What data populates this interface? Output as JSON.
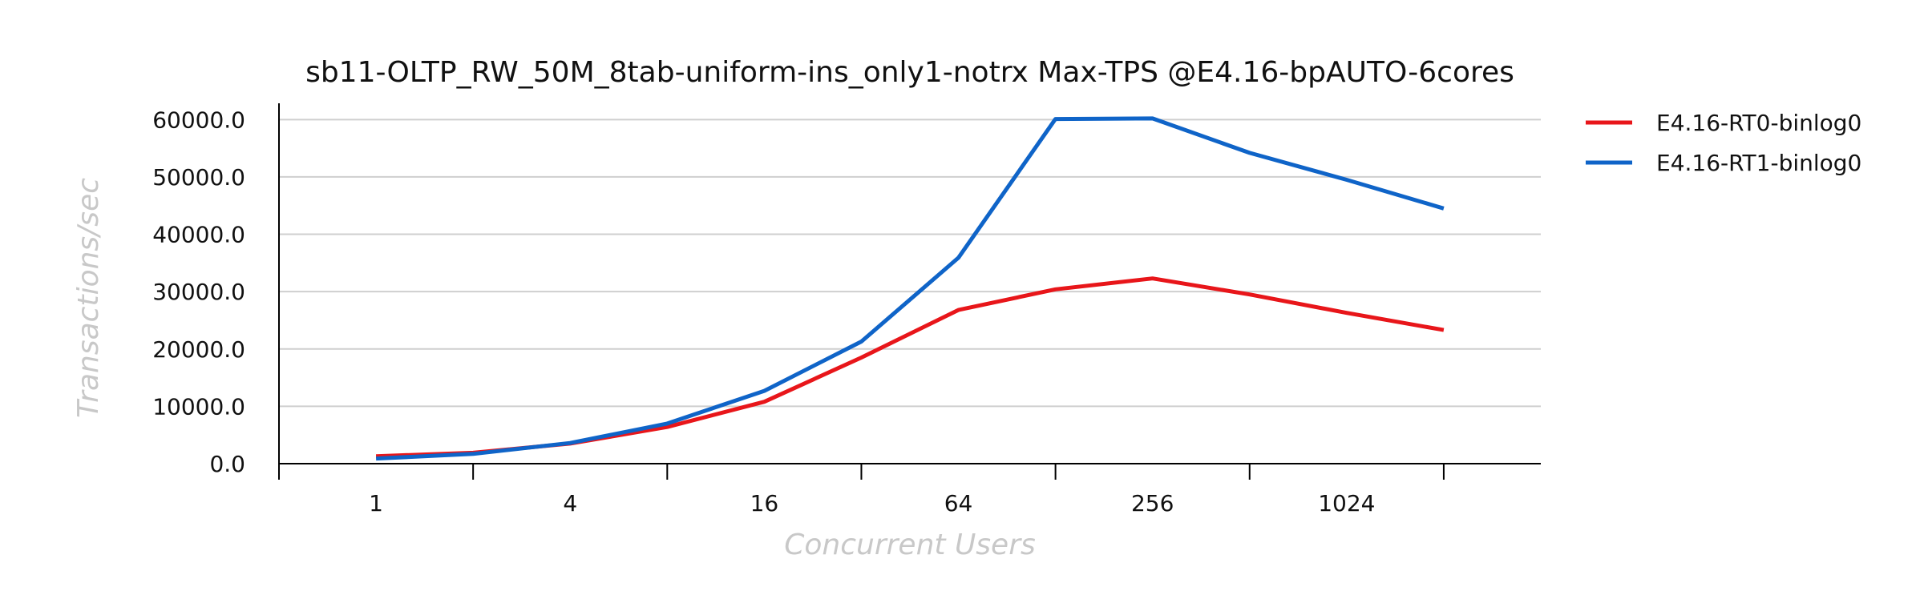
{
  "chart_data": {
    "type": "line",
    "title": "sb11-OLTP_RW_50M_8tab-uniform-ins_only1-notrx Max-TPS @E4.16-bpAUTO-6cores",
    "xlabel": "Concurrent Users",
    "ylabel": "Transactions/sec",
    "x_scale": "log2",
    "x": [
      1,
      2,
      4,
      8,
      16,
      32,
      64,
      128,
      256,
      512,
      1024,
      2048
    ],
    "x_tick_labels": [
      "1",
      "4",
      "16",
      "64",
      "256",
      "1024"
    ],
    "x_tick_values": [
      1,
      4,
      16,
      64,
      256,
      1024
    ],
    "xlim": [
      0.5,
      4096
    ],
    "ylim": [
      0,
      62000
    ],
    "y_ticks": [
      0,
      10000,
      20000,
      30000,
      40000,
      50000,
      60000
    ],
    "y_tick_labels": [
      "0.0",
      "10000.0",
      "20000.0",
      "30000.0",
      "40000.0",
      "50000.0",
      "60000.0"
    ],
    "grid": "horizontal",
    "legend_position": "right",
    "series": [
      {
        "name": "E4.16-RT0-binlog0",
        "color": "#e8161a",
        "values": [
          1300,
          1900,
          3500,
          6400,
          10800,
          18500,
          26800,
          30400,
          32300,
          29500,
          26300,
          23300
        ]
      },
      {
        "name": "E4.16-RT1-binlog0",
        "color": "#0f64c8",
        "values": [
          900,
          1700,
          3600,
          7000,
          12700,
          21300,
          35900,
          60100,
          60200,
          54200,
          49500,
          44500
        ]
      }
    ]
  }
}
